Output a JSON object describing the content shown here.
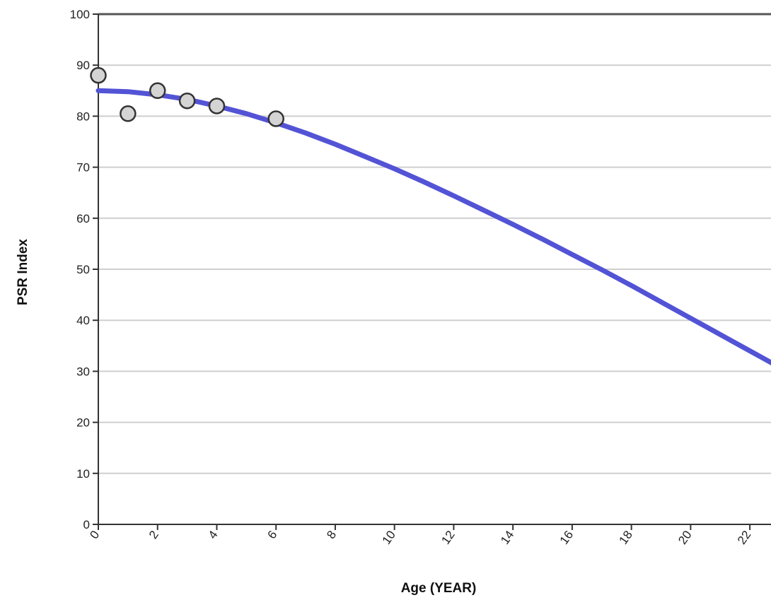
{
  "chart_data": {
    "type": "scatter",
    "title": "",
    "xlabel": "Age (YEAR)",
    "ylabel": "PSR Index",
    "xlim": [
      0,
      23
    ],
    "ylim": [
      0,
      100
    ],
    "x_ticks": [
      0,
      2,
      4,
      6,
      8,
      10,
      12,
      14,
      16,
      18,
      20,
      22
    ],
    "x_tick_labels": [
      "0",
      "2",
      "4",
      "6",
      "8",
      "10",
      "12",
      "14",
      "16",
      "18",
      "20",
      "22"
    ],
    "y_ticks": [
      0,
      10,
      20,
      30,
      40,
      50,
      60,
      70,
      80,
      90,
      100
    ],
    "y_tick_labels": [
      "0",
      "10",
      "20",
      "30",
      "40",
      "50",
      "60",
      "70",
      "80",
      "90",
      "100"
    ],
    "grid": "horizontal",
    "legend": "none",
    "series": [
      {
        "type": "scatter",
        "x": [
          0,
          1,
          2,
          3,
          4,
          6
        ],
        "y": [
          88,
          80.5,
          85,
          83,
          82,
          79.5
        ],
        "color": "#d4d4d4"
      },
      {
        "type": "line",
        "x": [
          0,
          1,
          2,
          3,
          4,
          5,
          6,
          7,
          8,
          9,
          10,
          11,
          12,
          13,
          14,
          15,
          16,
          17,
          18,
          19,
          20,
          21,
          22,
          23
        ],
        "y": [
          85,
          84.8,
          84.2,
          83.3,
          82,
          80.5,
          78.7,
          76.7,
          74.5,
          72.1,
          69.7,
          67.1,
          64.4,
          61.6,
          58.8,
          55.9,
          52.9,
          49.9,
          46.8,
          43.6,
          40.4,
          37.2,
          34,
          30.8
        ],
        "color": "#5353d6"
      }
    ]
  }
}
